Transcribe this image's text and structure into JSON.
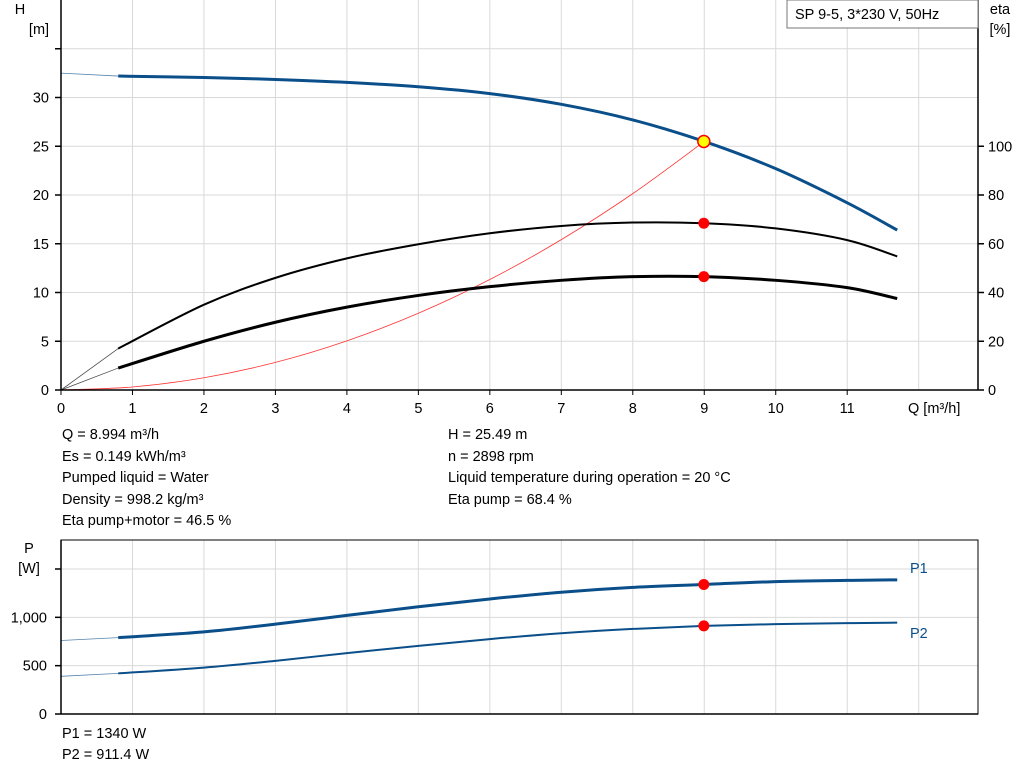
{
  "chart_data": [
    {
      "type": "line",
      "title": "SP 9-5, 3*230 V, 50Hz",
      "xlabel": "Q [m³/h]",
      "ylabel": "H\n[m]",
      "ylabel_unit_top": "H",
      "ylabel_unit": "[m]",
      "y2label_top": "eta",
      "y2label_unit": "[%]",
      "xlim": [
        0,
        12.83
      ],
      "ylim": [
        0,
        40
      ],
      "y2lim": [
        0,
        160
      ],
      "xticks": [
        "0",
        "1",
        "2",
        "3",
        "4",
        "5",
        "6",
        "7",
        "8",
        "9",
        "10",
        "11"
      ],
      "yticks": [
        "0",
        "5",
        "10",
        "15",
        "20",
        "25",
        "30"
      ],
      "y2ticks": [
        "0",
        "20",
        "40",
        "60",
        "80",
        "100"
      ],
      "grid": true,
      "colors": {
        "head": "#0b4f8a",
        "eta": "#000000",
        "system": "#ff3333",
        "point": "#ff0000",
        "duty": "#ffff00"
      },
      "series": [
        {
          "key": "head",
          "axis": "H",
          "x": [
            0.8,
            2,
            3,
            4,
            5,
            6,
            7,
            8,
            9,
            10,
            11,
            11.7
          ],
          "y": [
            32.2,
            32.05,
            31.85,
            31.55,
            31.1,
            30.4,
            29.3,
            27.7,
            25.49,
            22.7,
            19.2,
            16.4
          ],
          "extrapolated_from_zero": 32.5
        },
        {
          "key": "eta_pump",
          "axis": "eta",
          "x": [
            0.8,
            2,
            3,
            4,
            5,
            6,
            7,
            8,
            9,
            10,
            11,
            11.7
          ],
          "y": [
            17,
            35,
            46,
            54,
            59.8,
            64.3,
            67.3,
            68.7,
            68.4,
            66.3,
            61.5,
            54.8
          ]
        },
        {
          "key": "eta_pump_motor",
          "axis": "eta",
          "x": [
            0.8,
            2,
            3,
            4,
            5,
            6,
            7,
            8,
            9,
            10,
            11,
            11.7
          ],
          "y": [
            9,
            20,
            27.8,
            34,
            38.8,
            42.4,
            45,
            46.5,
            46.5,
            45,
            42,
            37.5
          ]
        },
        {
          "key": "system_curve",
          "axis": "H",
          "x": [
            0,
            1,
            2,
            3,
            4,
            5,
            6,
            7,
            8,
            9
          ],
          "y": [
            0,
            0.31,
            1.26,
            2.83,
            5.04,
            7.87,
            11.33,
            15.42,
            20.14,
            25.49
          ]
        }
      ],
      "duty_point": {
        "x": 8.994,
        "H": 25.49,
        "eta_pump": 68.4,
        "eta_pump_motor": 46.5
      }
    },
    {
      "type": "line",
      "ylabel_top": "P",
      "ylabel_unit": "[W]",
      "xlim": [
        0,
        12.83
      ],
      "ylim": [
        0,
        1800
      ],
      "yticks": [
        "0",
        "500",
        "1,000"
      ],
      "grid": true,
      "series": [
        {
          "name": "P1",
          "x": [
            0.8,
            2,
            3,
            4,
            5,
            6,
            7,
            8,
            9,
            10,
            11,
            11.7
          ],
          "y": [
            790,
            850,
            930,
            1020,
            1110,
            1190,
            1260,
            1310,
            1340,
            1370,
            1382,
            1388
          ],
          "extrapolated_from_zero": 760
        },
        {
          "name": "P2",
          "x": [
            0.8,
            2,
            3,
            4,
            5,
            6,
            7,
            8,
            9,
            10,
            11,
            11.7
          ],
          "y": [
            420,
            480,
            550,
            630,
            705,
            775,
            835,
            880,
            911.4,
            930,
            940,
            945
          ],
          "extrapolated_from_zero": 390
        }
      ],
      "duty_point": {
        "x": 8.994,
        "P1": 1340,
        "P2": 911.4
      }
    }
  ],
  "info": {
    "left": [
      "Q = 8.994 m³/h",
      "Es = 0.149 kWh/m³",
      "Pumped liquid = Water",
      "Density = 998.2 kg/m³",
      "Eta pump+motor = 46.5 %"
    ],
    "right": [
      "H = 25.49 m",
      "n = 2898 rpm",
      "Liquid temperature during operation = 20 °C",
      "Eta pump = 68.4 %"
    ],
    "power": [
      "P1 = 1340 W",
      "P2 = 911.4 W"
    ]
  }
}
